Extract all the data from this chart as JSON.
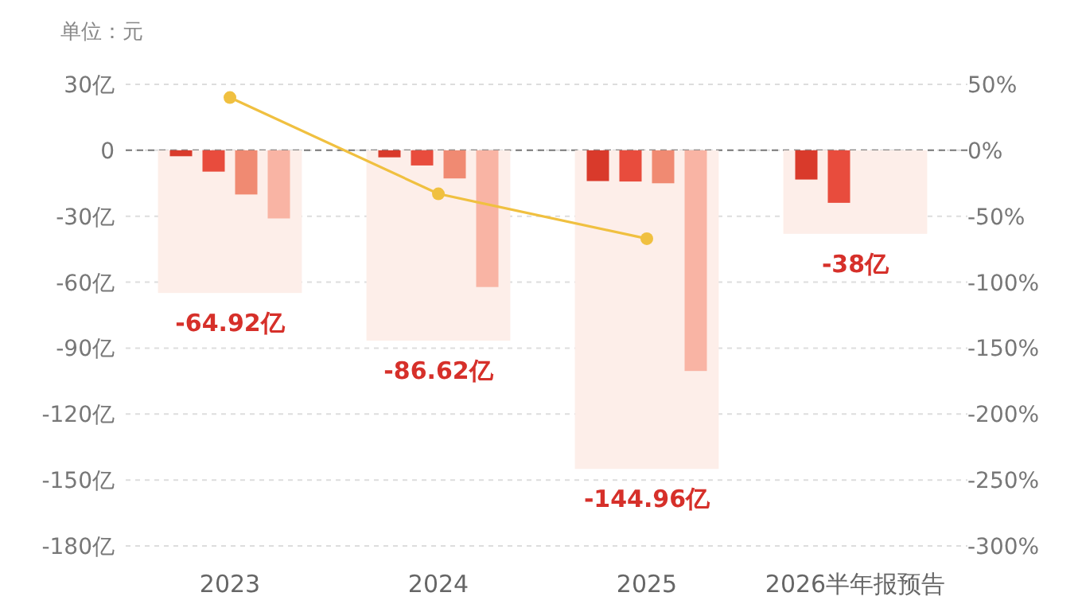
{
  "chart_data": {
    "type": "bar",
    "ylabel": "单位：元",
    "categories": [
      "2023",
      "2024",
      "2025",
      "2026半年报预告"
    ],
    "series": [
      {
        "color": "#fdeee9",
        "values": [
          -64.92,
          -86.62,
          -144.96,
          -38
        ],
        "value_labels": [
          "-64.92亿",
          "-86.62亿",
          "-144.96亿",
          "-38亿"
        ]
      },
      {
        "color": "#d93a2b",
        "values": [
          -2.7,
          -3.2,
          -14.0,
          -13.3
        ]
      },
      {
        "color": "#e84c3d",
        "values": [
          -9.7,
          -6.9,
          -14.2,
          -23.9
        ]
      },
      {
        "color": "#f08a72",
        "values": [
          -20.1,
          -12.8,
          -15.0,
          null
        ]
      },
      {
        "color": "#f9b4a4",
        "values": [
          -31.0,
          -62.2,
          -100.4,
          null
        ]
      },
      {
        "type": "line",
        "axis": "y2",
        "color": "#f0c040",
        "values": [
          40,
          -33,
          -67,
          null
        ]
      }
    ],
    "ref_lines": [
      {
        "axis": "y",
        "value": 0,
        "color": "#777777",
        "line_style": "dashed"
      }
    ],
    "ylim": [
      -180,
      30
    ],
    "yticks": [
      {
        "value": 30,
        "label": "30亿"
      },
      0,
      {
        "value": -30,
        "label": "-30亿"
      },
      {
        "value": -60,
        "label": "-60亿"
      },
      {
        "value": -90,
        "label": "-90亿"
      },
      {
        "value": -120,
        "label": "-120亿"
      },
      {
        "value": -150,
        "label": "-150亿"
      },
      {
        "value": -180,
        "label": "-180亿"
      }
    ],
    "y2lim": [
      -300,
      50
    ],
    "y2ticks": [
      {
        "value": 50,
        "label": "50%"
      },
      {
        "value": 0,
        "label": "0%"
      },
      {
        "value": -50,
        "label": "-50%"
      },
      {
        "value": -100,
        "label": "-100%"
      },
      {
        "value": -150,
        "label": "-150%"
      },
      {
        "value": -200,
        "label": "-200%"
      },
      {
        "value": -250,
        "label": "-250%"
      },
      {
        "value": -300,
        "label": "-300%"
      }
    ],
    "grid": "y",
    "marker": "circle"
  }
}
